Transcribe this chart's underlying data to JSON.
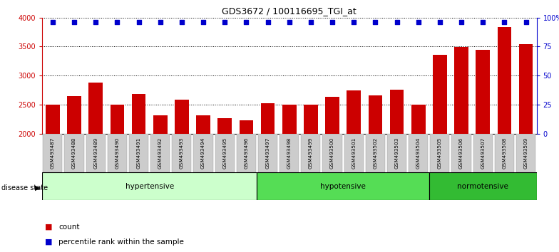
{
  "title": "GDS3672 / 100116695_TGI_at",
  "samples": [
    "GSM493487",
    "GSM493488",
    "GSM493489",
    "GSM493490",
    "GSM493491",
    "GSM493492",
    "GSM493493",
    "GSM493494",
    "GSM493495",
    "GSM493496",
    "GSM493497",
    "GSM493498",
    "GSM493499",
    "GSM493500",
    "GSM493501",
    "GSM493502",
    "GSM493503",
    "GSM493504",
    "GSM493505",
    "GSM493506",
    "GSM493507",
    "GSM493508",
    "GSM493509"
  ],
  "counts": [
    2500,
    2650,
    2880,
    2500,
    2680,
    2320,
    2590,
    2310,
    2270,
    2230,
    2520,
    2500,
    2500,
    2640,
    2750,
    2660,
    2760,
    2500,
    3360,
    3490,
    3440,
    3840,
    3540
  ],
  "percentile_val": 96,
  "bar_color": "#cc0000",
  "dot_color": "#0000cc",
  "ylim_left": [
    2000,
    4000
  ],
  "ylim_right": [
    0,
    100
  ],
  "yticks_left": [
    2000,
    2500,
    3000,
    3500,
    4000
  ],
  "yticks_right": [
    0,
    25,
    50,
    75,
    100
  ],
  "yticklabels_right": [
    "0",
    "25",
    "50",
    "75",
    "100%"
  ],
  "grid_lines": [
    2500,
    3000,
    3500,
    4000
  ],
  "disease_groups": [
    {
      "label": "hypertensive",
      "start": 0,
      "end": 10,
      "color": "#ccffcc"
    },
    {
      "label": "hypotensive",
      "start": 10,
      "end": 18,
      "color": "#55dd55"
    },
    {
      "label": "normotensive",
      "start": 18,
      "end": 23,
      "color": "#33bb33"
    }
  ],
  "disease_state_label": "disease state",
  "background_color": "#ffffff",
  "tick_bg_color": "#cccccc"
}
